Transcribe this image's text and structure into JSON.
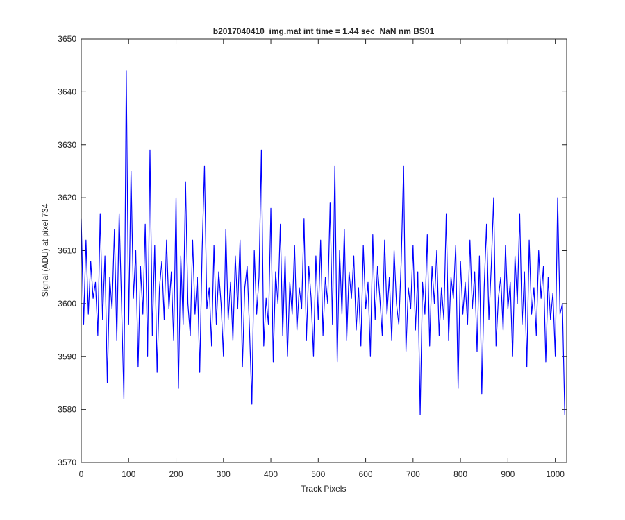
{
  "chart_data": {
    "type": "line",
    "title": "b2017040410_img.mat int time = 1.44 sec  NaN nm BS01",
    "xlabel": "Track Pixels",
    "ylabel": "Signal (ADU) at pixel 734",
    "xlim": [
      0,
      1024
    ],
    "ylim": [
      3570,
      3650
    ],
    "xticks": [
      0,
      100,
      200,
      300,
      400,
      500,
      600,
      700,
      800,
      900,
      1000
    ],
    "yticks": [
      3570,
      3580,
      3590,
      3600,
      3610,
      3620,
      3630,
      3640,
      3650
    ],
    "grid": false,
    "x": [
      0,
      5,
      10,
      15,
      20,
      25,
      30,
      35,
      40,
      45,
      50,
      55,
      60,
      65,
      70,
      75,
      80,
      85,
      90,
      95,
      100,
      105,
      110,
      115,
      120,
      125,
      130,
      135,
      140,
      145,
      150,
      155,
      160,
      165,
      170,
      175,
      180,
      185,
      190,
      195,
      200,
      205,
      210,
      215,
      220,
      225,
      230,
      235,
      240,
      245,
      250,
      255,
      260,
      265,
      270,
      275,
      280,
      285,
      290,
      295,
      300,
      305,
      310,
      315,
      320,
      325,
      330,
      335,
      340,
      345,
      350,
      355,
      360,
      365,
      370,
      375,
      380,
      385,
      390,
      395,
      400,
      405,
      410,
      415,
      420,
      425,
      430,
      435,
      440,
      445,
      450,
      455,
      460,
      465,
      470,
      475,
      480,
      485,
      490,
      495,
      500,
      505,
      510,
      515,
      520,
      525,
      530,
      535,
      540,
      545,
      550,
      555,
      560,
      565,
      570,
      575,
      580,
      585,
      590,
      595,
      600,
      605,
      610,
      615,
      620,
      625,
      630,
      635,
      640,
      645,
      650,
      655,
      660,
      665,
      670,
      675,
      680,
      685,
      690,
      695,
      700,
      705,
      710,
      715,
      720,
      725,
      730,
      735,
      740,
      745,
      750,
      755,
      760,
      765,
      770,
      775,
      780,
      785,
      790,
      795,
      800,
      805,
      810,
      815,
      820,
      825,
      830,
      835,
      840,
      845,
      850,
      855,
      860,
      865,
      870,
      875,
      880,
      885,
      890,
      895,
      900,
      905,
      910,
      915,
      920,
      925,
      930,
      935,
      940,
      945,
      950,
      955,
      960,
      965,
      970,
      975,
      980,
      985,
      990,
      995,
      1000,
      1005,
      1010,
      1015,
      1020
    ],
    "series": [
      {
        "color": "#0000ff",
        "values": [
          3616,
          3596,
          3612,
          3598,
          3608,
          3601,
          3604,
          3594,
          3617,
          3597,
          3609,
          3585,
          3605,
          3599,
          3614,
          3593,
          3617,
          3600,
          3582,
          3644,
          3596,
          3625,
          3601,
          3610,
          3588,
          3607,
          3598,
          3615,
          3590,
          3629,
          3594,
          3611,
          3587,
          3603,
          3608,
          3597,
          3612,
          3599,
          3606,
          3593,
          3620,
          3584,
          3609,
          3596,
          3623,
          3600,
          3594,
          3612,
          3598,
          3605,
          3587,
          3610,
          3626,
          3599,
          3603,
          3592,
          3611,
          3596,
          3606,
          3600,
          3590,
          3614,
          3597,
          3604,
          3593,
          3609,
          3599,
          3612,
          3588,
          3603,
          3607,
          3595,
          3581,
          3610,
          3598,
          3605,
          3629,
          3592,
          3601,
          3596,
          3618,
          3589,
          3606,
          3600,
          3615,
          3594,
          3609,
          3590,
          3604,
          3598,
          3611,
          3595,
          3603,
          3599,
          3616,
          3593,
          3607,
          3601,
          3590,
          3609,
          3597,
          3612,
          3594,
          3605,
          3600,
          3619,
          3596,
          3626,
          3589,
          3610,
          3598,
          3614,
          3593,
          3606,
          3601,
          3609,
          3595,
          3603,
          3592,
          3611,
          3599,
          3604,
          3590,
          3613,
          3597,
          3607,
          3601,
          3594,
          3612,
          3598,
          3605,
          3593,
          3610,
          3600,
          3596,
          3608,
          3626,
          3591,
          3603,
          3599,
          3611,
          3595,
          3606,
          3579,
          3604,
          3598,
          3613,
          3592,
          3607,
          3600,
          3610,
          3594,
          3603,
          3597,
          3617,
          3593,
          3605,
          3601,
          3611,
          3584,
          3608,
          3598,
          3604,
          3596,
          3612,
          3599,
          3606,
          3591,
          3609,
          3583,
          3603,
          3615,
          3597,
          3607,
          3620,
          3592,
          3601,
          3605,
          3595,
          3611,
          3599,
          3604,
          3590,
          3609,
          3600,
          3617,
          3596,
          3606,
          3588,
          3612,
          3598,
          3603,
          3594,
          3610,
          3601,
          3607,
          3589,
          3605,
          3597,
          3602,
          3590,
          3620,
          3598,
          3600,
          3579
        ]
      }
    ]
  }
}
